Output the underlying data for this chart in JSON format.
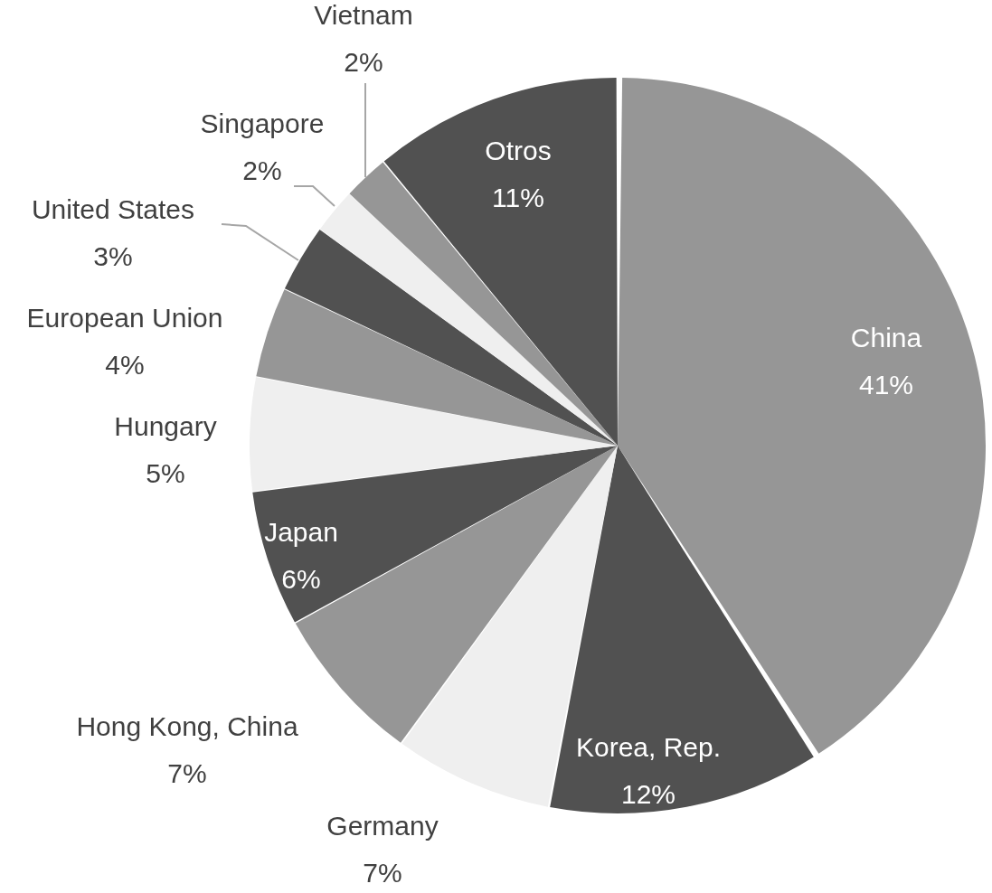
{
  "chart_data": {
    "type": "pie",
    "categories": [
      "China",
      "Korea, Rep.",
      "Germany",
      "Hong Kong, China",
      "Japan",
      "Hungary",
      "European Union",
      "United States",
      "Singapore",
      "Vietnam",
      "Otros"
    ],
    "values": [
      41,
      12,
      7,
      7,
      6,
      5,
      4,
      3,
      2,
      2,
      11
    ],
    "value_labels": [
      "41%",
      "12%",
      "7%",
      "7%",
      "6%",
      "5%",
      "4%",
      "3%",
      "2%",
      "2%",
      "11%"
    ],
    "colors": [
      "#969696",
      "#515151",
      "#efefef",
      "#969696",
      "#515151",
      "#efefef",
      "#969696",
      "#515151",
      "#efefef",
      "#969696",
      "#515151"
    ]
  }
}
